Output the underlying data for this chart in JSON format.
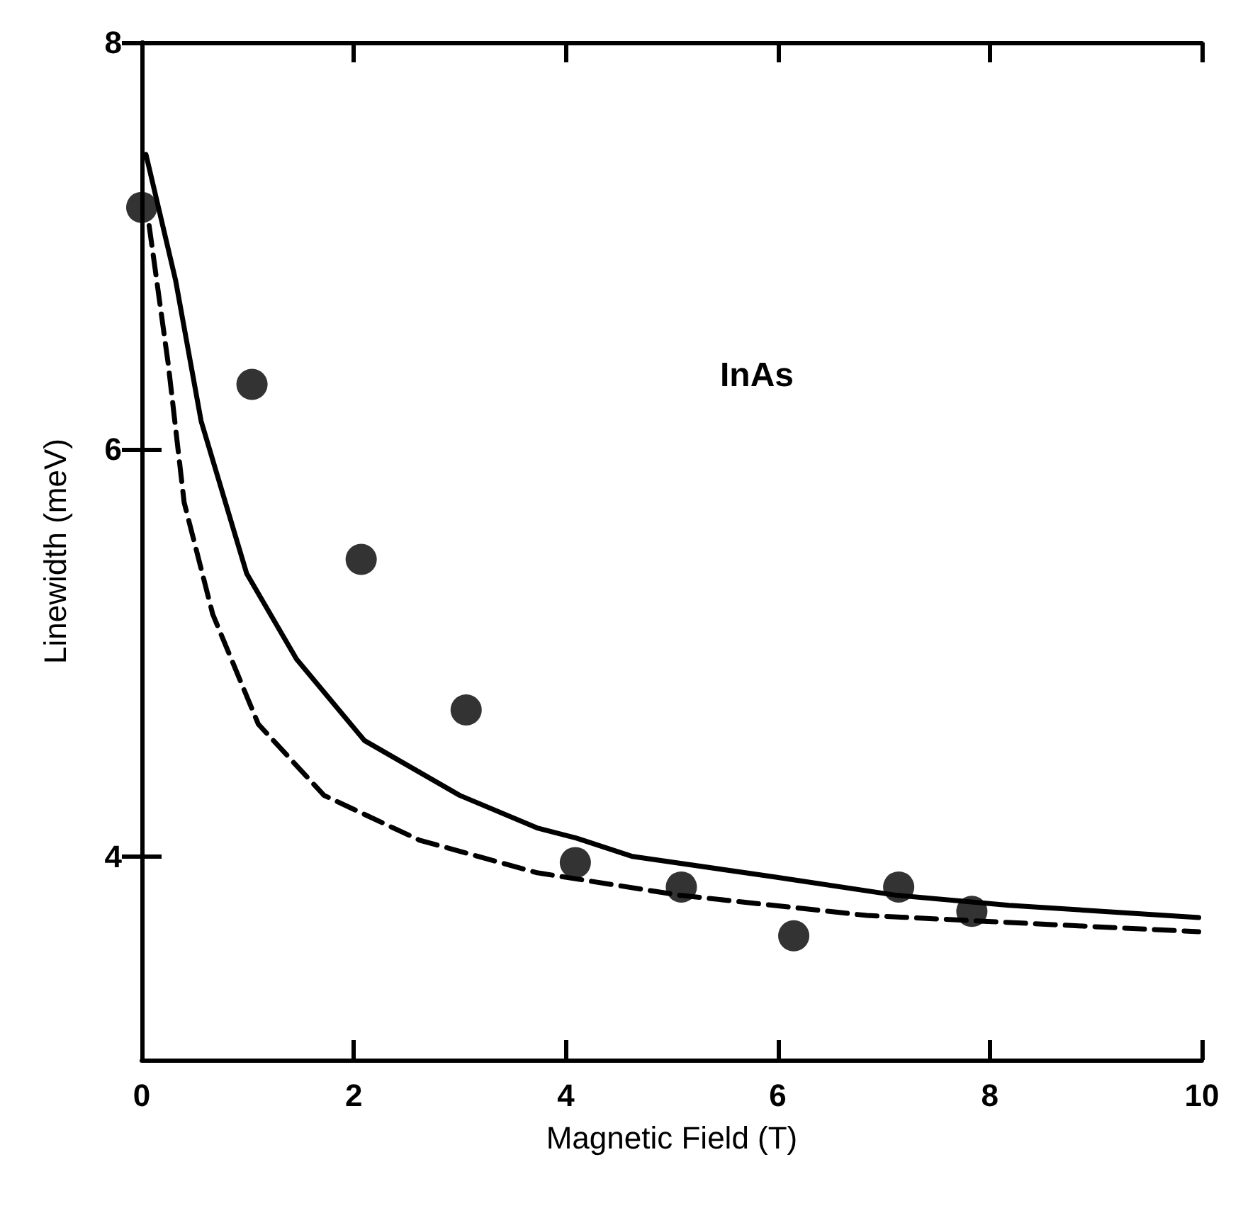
{
  "chart_data": {
    "type": "scatter",
    "xlabel": "Magnetic Field (T)",
    "ylabel": "Linewidth (meV)",
    "annotations": [
      "InAs"
    ],
    "xlim": [
      0,
      10
    ],
    "xticks": [
      0,
      2,
      4,
      6,
      8,
      10
    ],
    "ylim": [
      3,
      8
    ],
    "yticks": [
      4,
      6,
      8
    ],
    "grid": false,
    "series": [
      {
        "color": "#000000",
        "marker": "circle",
        "x": [
          0,
          1.04,
          2.07,
          3.06,
          4.09,
          5.09,
          6.15,
          7.14,
          7.83
        ],
        "values": [
          7.19,
          6.32,
          5.46,
          4.72,
          3.97,
          3.85,
          3.61,
          3.85,
          3.73
        ]
      },
      {
        "type": "line",
        "color": "#000000",
        "marker": "none",
        "line_style": "solid",
        "x": [
          0.04,
          0.32,
          0.56,
          0.99,
          1.46,
          2.1,
          3.0,
          3.73,
          4.1,
          4.63,
          5.96,
          7.11,
          8.18,
          9.97
        ],
        "values": [
          7.45,
          6.83,
          6.14,
          5.39,
          4.97,
          4.57,
          4.3,
          4.14,
          4.09,
          4.0,
          3.9,
          3.81,
          3.76,
          3.7
        ]
      },
      {
        "type": "line",
        "color": "#000000",
        "marker": "none",
        "line_style": "dashed",
        "x": [
          0.07,
          0.25,
          0.4,
          0.67,
          1.1,
          1.72,
          2.62,
          3.73,
          5.07,
          6.84,
          9.97
        ],
        "values": [
          7.1,
          6.42,
          5.74,
          5.19,
          4.65,
          4.3,
          4.08,
          3.92,
          3.81,
          3.71,
          3.63
        ]
      }
    ]
  }
}
